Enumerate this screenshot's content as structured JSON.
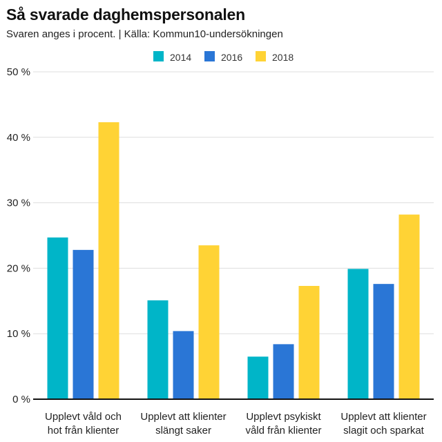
{
  "chart_data": {
    "type": "bar",
    "title": "Så svarade daghemspersonalen",
    "subtitle": "Svaren anges i procent. | Källa: Kommun10-undersökningen",
    "categories": [
      [
        "Upplevt våld och",
        "hot från klienter"
      ],
      [
        "Upplevt att klienter",
        "slängt saker"
      ],
      [
        "Upplevt psykiskt",
        "våld från klienter"
      ],
      [
        "Upplevt att klienter",
        "slagit och sparkat"
      ]
    ],
    "series": [
      {
        "name": "2014",
        "color": "#00b5c8",
        "values": [
          24.7,
          15.1,
          6.5,
          19.9
        ]
      },
      {
        "name": "2016",
        "color": "#2a76d6",
        "values": [
          22.8,
          10.4,
          8.4,
          17.6
        ]
      },
      {
        "name": "2018",
        "color": "#ffd335",
        "values": [
          42.3,
          23.5,
          17.3,
          28.2
        ]
      }
    ],
    "ylim": [
      0,
      50
    ],
    "yticks": [
      0,
      10,
      20,
      30,
      40,
      50
    ],
    "ytick_labels": [
      "0 %",
      "10 %",
      "20 %",
      "30 %",
      "40 %",
      "50 %"
    ],
    "xlabel": "",
    "ylabel": "",
    "grid": true,
    "legend_position": "top-center"
  }
}
